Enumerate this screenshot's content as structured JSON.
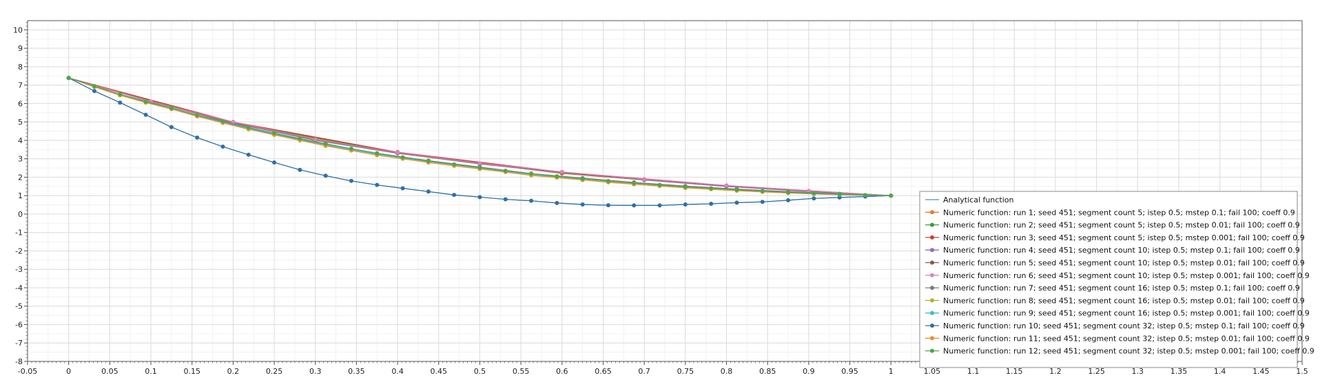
{
  "chart_data": {
    "type": "line",
    "title": "",
    "xlabel": "",
    "ylabel": "",
    "xlim": [
      -0.05,
      1.5
    ],
    "ylim": [
      -8,
      10.5
    ],
    "x_ticks": [
      "-0.05",
      "0",
      "0.05",
      "0.1",
      "0.15",
      "0.2",
      "0.25",
      "0.3",
      "0.35",
      "0.4",
      "0.45",
      "0.5",
      "0.55",
      "0.6",
      "0.65",
      "0.7",
      "0.75",
      "0.8",
      "0.85",
      "0.9",
      "0.95",
      "1",
      "1.05",
      "1.1",
      "1.15",
      "1.2",
      "1.25",
      "1.3",
      "1.35",
      "1.4",
      "1.45",
      "1.5"
    ],
    "y_ticks": [
      "-8",
      "-7",
      "-6",
      "-5",
      "-4",
      "-3",
      "-2",
      "-1",
      "0",
      "1",
      "2",
      "3",
      "4",
      "5",
      "6",
      "7",
      "8",
      "9",
      "10"
    ],
    "grid": true,
    "legend_position": "bottom-right",
    "series": [
      {
        "name": "Analytical function",
        "color": "#4a90c4",
        "markers": false,
        "x": [
          0,
          0.03125,
          0.0625,
          0.09375,
          0.125,
          0.15625,
          0.1875,
          0.21875,
          0.25,
          0.28125,
          0.3125,
          0.34375,
          0.375,
          0.40625,
          0.4375,
          0.46875,
          0.5,
          0.53125,
          0.5625,
          0.59375,
          0.625,
          0.65625,
          0.6875,
          0.71875,
          0.75,
          0.78125,
          0.8125,
          0.84375,
          0.875,
          0.90625,
          0.9375,
          0.96875,
          1
        ],
        "y": [
          7.39,
          6.68,
          6.05,
          5.39,
          4.72,
          4.15,
          3.66,
          3.22,
          2.8,
          2.4,
          2.08,
          1.8,
          1.58,
          1.4,
          1.22,
          1.04,
          0.92,
          0.8,
          0.72,
          0.6,
          0.52,
          0.48,
          0.47,
          0.47,
          0.52,
          0.56,
          0.62,
          0.66,
          0.75,
          0.85,
          0.9,
          0.95,
          1
        ]
      },
      {
        "name": "Numeric function: run 1; seed 451; segment count 5; istep 0.5; mstep 0.1; fail 100; coeff 0.9",
        "color": "#e07b39",
        "markers": true,
        "x": [
          0,
          0.2,
          0.4,
          0.6,
          0.8,
          1
        ],
        "y": [
          7.39,
          4.9,
          3.3,
          2.2,
          1.5,
          1
        ]
      },
      {
        "name": "Numeric function: run 2; seed 451; segment count 5; istep 0.5; mstep 0.01; fail 100; coeff 0.9",
        "color": "#3a9a3a",
        "markers": true,
        "x": [
          0,
          0.2,
          0.4,
          0.6,
          0.8,
          1
        ],
        "y": [
          7.39,
          4.95,
          3.33,
          2.25,
          1.52,
          1
        ]
      },
      {
        "name": "Numeric function: run 3; seed 451; segment count 5; istep 0.5; mstep 0.001; fail 100; coeff 0.9",
        "color": "#d03a3a",
        "markers": true,
        "x": [
          0,
          0.2,
          0.4,
          0.6,
          0.8,
          1
        ],
        "y": [
          7.39,
          5,
          3.36,
          2.28,
          1.55,
          1
        ]
      },
      {
        "name": "Numeric function: run 4; seed 451; segment count 10; istep 0.5; mstep 0.1; fail 100; coeff 0.9",
        "color": "#8f6cc0",
        "markers": true,
        "x": [
          0,
          0.1,
          0.2,
          0.3,
          0.4,
          0.5,
          0.6,
          0.7,
          0.8,
          0.9,
          1
        ],
        "y": [
          7.39,
          6.1,
          4.95,
          4.0,
          3.3,
          2.72,
          2.25,
          1.85,
          1.5,
          1.22,
          1
        ]
      },
      {
        "name": "Numeric function: run 5; seed 451; segment count 10; istep 0.5; mstep 0.01; fail 100; coeff 0.9",
        "color": "#8b5a4a",
        "markers": true,
        "x": [
          0,
          0.1,
          0.2,
          0.3,
          0.4,
          0.5,
          0.6,
          0.7,
          0.8,
          0.9,
          1
        ],
        "y": [
          7.39,
          6.1,
          4.98,
          4.03,
          3.32,
          2.74,
          2.27,
          1.87,
          1.53,
          1.24,
          1
        ]
      },
      {
        "name": "Numeric function: run 6; seed 451; segment count 10; istep 0.5; mstep 0.001; fail 100; coeff 0.9",
        "color": "#d985c0",
        "markers": true,
        "x": [
          0,
          0.1,
          0.2,
          0.3,
          0.4,
          0.5,
          0.6,
          0.7,
          0.8,
          0.9,
          1
        ],
        "y": [
          7.39,
          6.12,
          5.0,
          4.05,
          3.34,
          2.76,
          2.29,
          1.89,
          1.55,
          1.26,
          1
        ]
      },
      {
        "name": "Numeric function: run 7; seed 451; segment count 16; istep 0.5; mstep 0.1; fail 100; coeff 0.9",
        "color": "#7a7a7a",
        "markers": true,
        "x": [
          0,
          0.0625,
          0.125,
          0.1875,
          0.25,
          0.3125,
          0.375,
          0.4375,
          0.5,
          0.5625,
          0.625,
          0.6875,
          0.75,
          0.8125,
          0.875,
          0.9375,
          1
        ],
        "y": [
          7.39,
          6.5,
          5.75,
          5.0,
          4.35,
          3.8,
          3.3,
          2.9,
          2.55,
          2.2,
          1.95,
          1.72,
          1.52,
          1.36,
          1.22,
          1.1,
          1
        ]
      },
      {
        "name": "Numeric function: run 8; seed 451; segment count 16; istep 0.5; mstep 0.01; fail 100; coeff 0.9",
        "color": "#b5b02a",
        "markers": true,
        "x": [
          0,
          0.0625,
          0.125,
          0.1875,
          0.25,
          0.3125,
          0.375,
          0.4375,
          0.5,
          0.5625,
          0.625,
          0.6875,
          0.75,
          0.8125,
          0.875,
          0.9375,
          1
        ],
        "y": [
          7.39,
          6.45,
          5.7,
          4.95,
          4.3,
          3.7,
          3.2,
          2.8,
          2.45,
          2.1,
          1.85,
          1.62,
          1.42,
          1.27,
          1.15,
          1.06,
          1
        ]
      },
      {
        "name": "Numeric function: run 9; seed 451; segment count 16; istep 0.5; mstep 0.001; fail 100; coeff 0.9",
        "color": "#3fb8d8",
        "markers": true,
        "x": [
          0,
          0.0625,
          0.125,
          0.1875,
          0.25,
          0.3125,
          0.375,
          0.4375,
          0.5,
          0.5625,
          0.625,
          0.6875,
          0.75,
          0.8125,
          0.875,
          0.9375,
          1
        ],
        "y": [
          7.39,
          6.48,
          5.73,
          4.98,
          4.33,
          3.75,
          3.25,
          2.85,
          2.5,
          2.15,
          1.9,
          1.67,
          1.47,
          1.31,
          1.18,
          1.08,
          1
        ]
      },
      {
        "name": "Numeric function: run 10; seed 451; segment count 32; istep 0.5; mstep 0.1; fail 100; coeff 0.9",
        "color": "#2f6fa8",
        "markers": true,
        "x": [
          0,
          0.03125,
          0.0625,
          0.09375,
          0.125,
          0.15625,
          0.1875,
          0.21875,
          0.25,
          0.28125,
          0.3125,
          0.34375,
          0.375,
          0.40625,
          0.4375,
          0.46875,
          0.5,
          0.53125,
          0.5625,
          0.59375,
          0.625,
          0.65625,
          0.6875,
          0.71875,
          0.75,
          0.78125,
          0.8125,
          0.84375,
          0.875,
          0.90625,
          0.9375,
          0.96875,
          1
        ],
        "y": [
          7.39,
          6.68,
          6.05,
          5.39,
          4.72,
          4.15,
          3.66,
          3.22,
          2.8,
          2.4,
          2.08,
          1.8,
          1.58,
          1.4,
          1.22,
          1.04,
          0.92,
          0.8,
          0.72,
          0.6,
          0.52,
          0.48,
          0.47,
          0.47,
          0.52,
          0.56,
          0.62,
          0.66,
          0.75,
          0.85,
          0.9,
          0.95,
          1
        ]
      },
      {
        "name": "Numeric function: run 11; seed 451; segment count 32; istep 0.5; mstep 0.01; fail 100; coeff 0.9",
        "color": "#f0902a",
        "markers": true,
        "x": [
          0,
          0.03125,
          0.0625,
          0.09375,
          0.125,
          0.15625,
          0.1875,
          0.21875,
          0.25,
          0.28125,
          0.3125,
          0.34375,
          0.375,
          0.40625,
          0.4375,
          0.46875,
          0.5,
          0.53125,
          0.5625,
          0.59375,
          0.625,
          0.65625,
          0.6875,
          0.71875,
          0.75,
          0.78125,
          0.8125,
          0.84375,
          0.875,
          0.90625,
          0.9375,
          0.96875,
          1
        ],
        "y": [
          7.39,
          6.9,
          6.45,
          6.05,
          5.7,
          5.3,
          4.95,
          4.6,
          4.3,
          4.0,
          3.72,
          3.45,
          3.2,
          3.0,
          2.8,
          2.62,
          2.45,
          2.28,
          2.12,
          1.98,
          1.85,
          1.72,
          1.62,
          1.52,
          1.43,
          1.35,
          1.27,
          1.2,
          1.14,
          1.09,
          1.05,
          1.02,
          1
        ]
      },
      {
        "name": "Numeric function: run 12; seed 451; segment count 32; istep 0.5; mstep 0.001; fail 100; coeff 0.9",
        "color": "#4aa84a",
        "markers": true,
        "x": [
          0,
          0.03125,
          0.0625,
          0.09375,
          0.125,
          0.15625,
          0.1875,
          0.21875,
          0.25,
          0.28125,
          0.3125,
          0.34375,
          0.375,
          0.40625,
          0.4375,
          0.46875,
          0.5,
          0.53125,
          0.5625,
          0.59375,
          0.625,
          0.65625,
          0.6875,
          0.71875,
          0.75,
          0.78125,
          0.8125,
          0.84375,
          0.875,
          0.90625,
          0.9375,
          0.96875,
          1
        ],
        "y": [
          7.39,
          6.95,
          6.5,
          6.1,
          5.75,
          5.38,
          5.03,
          4.7,
          4.4,
          4.1,
          3.82,
          3.55,
          3.3,
          3.08,
          2.88,
          2.7,
          2.52,
          2.35,
          2.2,
          2.05,
          1.92,
          1.79,
          1.68,
          1.58,
          1.48,
          1.4,
          1.32,
          1.25,
          1.18,
          1.12,
          1.07,
          1.03,
          1
        ]
      }
    ]
  }
}
